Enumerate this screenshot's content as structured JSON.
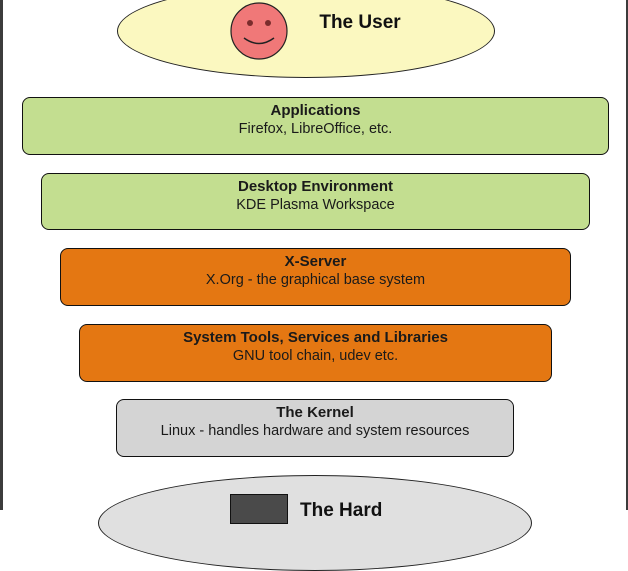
{
  "user": {
    "title": "The User"
  },
  "layers": [
    {
      "title": "Applications",
      "subtitle": "Firefox, LibreOffice, etc.",
      "color": "#c3de90"
    },
    {
      "title": "Desktop Environment",
      "subtitle": "KDE Plasma Workspace",
      "color": "#c3de90"
    },
    {
      "title": "X-Server",
      "subtitle": "X.Org  - the graphical base system",
      "color": "#e47712"
    },
    {
      "title": "System Tools, Services and Libraries",
      "subtitle": "GNU tool chain,  udev etc.",
      "color": "#e47712"
    },
    {
      "title": "The Kernel",
      "subtitle": "Linux - handles hardware and system resources",
      "color": "#d4d4d4"
    }
  ],
  "hardware": {
    "title": "The Hard"
  },
  "colors": {
    "user_fill": "#fbf8c0",
    "face_fill": "#f07878",
    "hardware_fill": "#e0e0e0"
  }
}
